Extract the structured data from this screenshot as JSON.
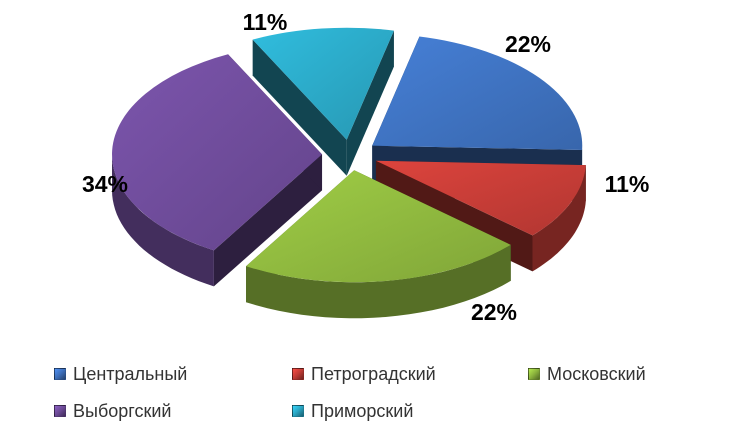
{
  "chart_data": {
    "type": "pie",
    "style": "3d-exploded",
    "title": "",
    "legend_position": "bottom",
    "categories": [
      "Центральный",
      "Петроградский",
      "Московский",
      "Выборгский",
      "Приморский"
    ],
    "values": [
      22,
      11,
      22,
      34,
      11
    ],
    "labels": [
      "22%",
      "11%",
      "22%",
      "34%",
      "11%"
    ],
    "colors": [
      "#3D6FBB",
      "#C03B35",
      "#8BB33D",
      "#6C4A96",
      "#2AA4C1"
    ]
  }
}
